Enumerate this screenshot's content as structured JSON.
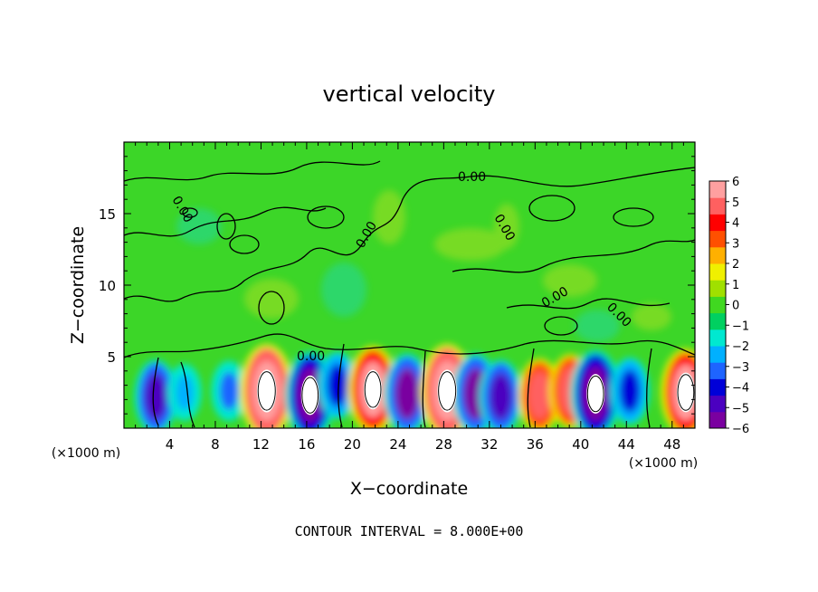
{
  "chart_data": {
    "type": "heatmap",
    "title": "vertical velocity",
    "xlabel": "X−coordinate",
    "ylabel": "Z−coordinate",
    "x_unit_left": "(×1000 m)",
    "x_unit_right": "(×1000 m)",
    "xlim": [
      0,
      50
    ],
    "ylim": [
      0,
      20
    ],
    "x_ticks": [
      "4",
      "8",
      "12",
      "16",
      "20",
      "24",
      "28",
      "32",
      "36",
      "40",
      "44",
      "48"
    ],
    "y_ticks": [
      "5",
      "10",
      "15"
    ],
    "colorbar_ticks": [
      "6",
      "5",
      "4",
      "3",
      "2",
      "1",
      "0",
      "−1",
      "−2",
      "−3",
      "−4",
      "−5",
      "−6"
    ],
    "colorbar_range": [
      -6,
      6
    ],
    "colorbar_colors": [
      "#7a00a0",
      "#4b00c0",
      "#0000d8",
      "#1e64ff",
      "#00b0ff",
      "#00e8d0",
      "#00d060",
      "#40d820",
      "#a0e000",
      "#f0f000",
      "#ffb000",
      "#ff5000",
      "#ff0000",
      "#ff6060",
      "#ffa0a0"
    ],
    "contour_labels": [
      "0.00",
      "0.00",
      "0.00",
      "0.00",
      "0.00",
      "0.00",
      "0.00"
    ],
    "footer": "CONTOUR INTERVAL = 8.000E+00",
    "low_level_cells": [
      {
        "x": 2.8,
        "z": 2.2,
        "w": -5
      },
      {
        "x": 5.3,
        "z": 2.5,
        "w": -2.5
      },
      {
        "x": 9.2,
        "z": 2.6,
        "w": -3
      },
      {
        "x": 12.5,
        "z": 2.6,
        "w": 8
      },
      {
        "x": 16.3,
        "z": 2.3,
        "w": -7
      },
      {
        "x": 18.7,
        "z": 3.0,
        "w": -4
      },
      {
        "x": 21.8,
        "z": 2.7,
        "w": 7
      },
      {
        "x": 24.8,
        "z": 2.4,
        "w": -6
      },
      {
        "x": 28.3,
        "z": 2.6,
        "w": 8
      },
      {
        "x": 30.8,
        "z": 2.4,
        "w": -6
      },
      {
        "x": 33.0,
        "z": 2.2,
        "w": -5
      },
      {
        "x": 36.4,
        "z": 2.3,
        "w": 5
      },
      {
        "x": 39.1,
        "z": 2.6,
        "w": 5
      },
      {
        "x": 41.3,
        "z": 2.4,
        "w": -7
      },
      {
        "x": 44.3,
        "z": 2.6,
        "w": -4
      },
      {
        "x": 49.2,
        "z": 2.5,
        "w": 7
      }
    ]
  }
}
